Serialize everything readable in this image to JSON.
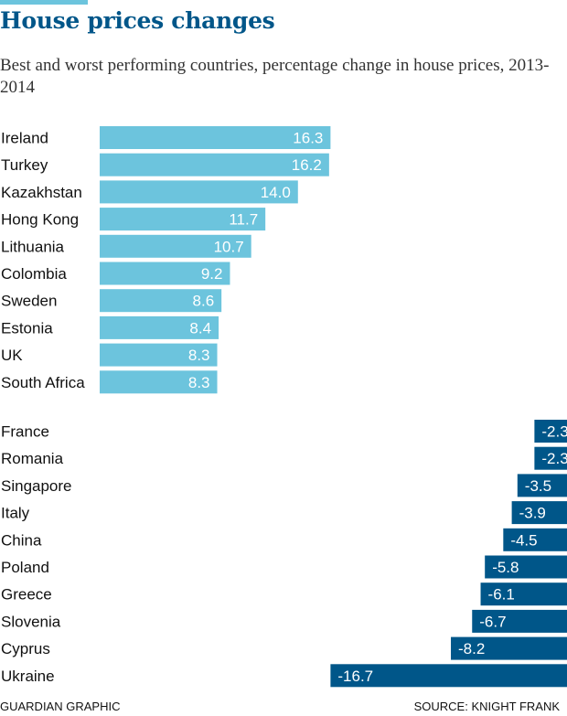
{
  "header": {
    "title": "House prices changes",
    "subtitle": "Best and worst performing countries, percentage change in house prices, 2013-2014"
  },
  "footer": {
    "credit": "GUARDIAN GRAPHIC",
    "source": "SOURCE: KNIGHT FRANK"
  },
  "colors": {
    "accent": "#6cc4dd",
    "positive_bar": "#6cc4dd",
    "negative_bar": "#005689",
    "title": "#005689"
  },
  "chart_data": {
    "type": "bar",
    "orientation": "horizontal",
    "title": "House prices changes",
    "subtitle": "Best and worst performing countries, percentage change in house prices, 2013-2014",
    "xlabel": "",
    "ylabel": "",
    "grid": false,
    "xlim": [
      -16.7,
      16.3
    ],
    "groups": [
      {
        "categories": [
          "Ireland",
          "Turkey",
          "Kazakhstan",
          "Hong Kong",
          "Lithuania",
          "Colombia",
          "Sweden",
          "Estonia",
          "UK",
          "South Africa"
        ],
        "values": [
          16.3,
          16.2,
          14.0,
          11.7,
          10.7,
          9.2,
          8.6,
          8.4,
          8.3,
          8.3
        ],
        "labels": [
          "16.3",
          "16.2",
          "14.0",
          "11.7",
          "10.7",
          "9.2",
          "8.6",
          "8.4",
          "8.3",
          "8.3"
        ],
        "color": "#6cc4dd"
      },
      {
        "categories": [
          "France",
          "Romania",
          "Singapore",
          "Italy",
          "China",
          "Poland",
          "Greece",
          "Slovenia",
          "Cyprus",
          "Ukraine"
        ],
        "values": [
          -2.3,
          -2.3,
          -3.5,
          -3.9,
          -4.5,
          -5.8,
          -6.1,
          -6.7,
          -8.2,
          -16.7
        ],
        "labels": [
          "-2.3",
          "-2.3",
          "-3.5",
          "-3.9",
          "-4.5",
          "-5.8",
          "-6.1",
          "-6.7",
          "-8.2",
          "-16.7"
        ],
        "color": "#005689"
      }
    ]
  }
}
